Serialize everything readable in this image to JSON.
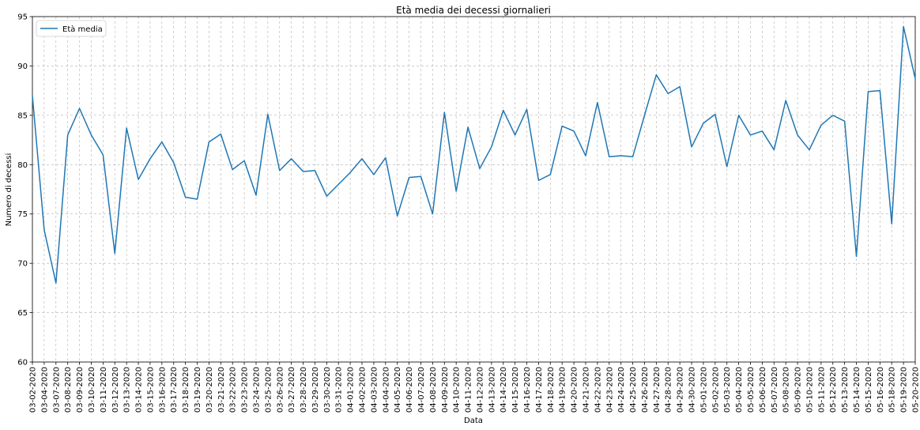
{
  "chart_data": {
    "type": "line",
    "title": "Età media dei decessi giornalieri",
    "xlabel": "Data",
    "ylabel": "Numero di decessi",
    "ylim": [
      60,
      95
    ],
    "yticks": [
      60,
      65,
      70,
      75,
      80,
      85,
      90,
      95
    ],
    "grid": true,
    "legend": "top-left",
    "x": [
      "03-02-2020",
      "03-04-2020",
      "03-07-2020",
      "03-08-2020",
      "03-09-2020",
      "03-10-2020",
      "03-11-2020",
      "03-12-2020",
      "03-13-2020",
      "03-14-2020",
      "03-15-2020",
      "03-16-2020",
      "03-17-2020",
      "03-18-2020",
      "03-19-2020",
      "03-20-2020",
      "03-21-2020",
      "03-22-2020",
      "03-23-2020",
      "03-24-2020",
      "03-25-2020",
      "03-26-2020",
      "03-27-2020",
      "03-28-2020",
      "03-29-2020",
      "03-30-2020",
      "03-31-2020",
      "04-01-2020",
      "04-02-2020",
      "04-03-2020",
      "04-04-2020",
      "04-05-2020",
      "04-06-2020",
      "04-07-2020",
      "04-08-2020",
      "04-09-2020",
      "04-10-2020",
      "04-11-2020",
      "04-12-2020",
      "04-13-2020",
      "04-14-2020",
      "04-15-2020",
      "04-16-2020",
      "04-17-2020",
      "04-18-2020",
      "04-19-2020",
      "04-20-2020",
      "04-21-2020",
      "04-22-2020",
      "04-23-2020",
      "04-24-2020",
      "04-25-2020",
      "04-26-2020",
      "04-27-2020",
      "04-28-2020",
      "04-29-2020",
      "04-30-2020",
      "05-01-2020",
      "05-02-2020",
      "05-03-2020",
      "05-04-2020",
      "05-05-2020",
      "05-06-2020",
      "05-07-2020",
      "05-08-2020",
      "05-09-2020",
      "05-10-2020",
      "05-11-2020",
      "05-12-2020",
      "05-13-2020",
      "05-14-2020",
      "05-15-2020",
      "05-16-2020",
      "05-18-2020",
      "05-19-2020",
      "05-20-2020"
    ],
    "series": [
      {
        "name": "Età media",
        "color": "#1f77b4",
        "values": [
          87.0,
          73.4,
          68.0,
          83.0,
          85.7,
          83.0,
          81.0,
          71.0,
          83.7,
          78.5,
          80.6,
          82.3,
          80.2,
          76.7,
          76.5,
          82.3,
          83.1,
          79.5,
          80.4,
          76.9,
          85.1,
          79.4,
          80.6,
          79.3,
          79.4,
          76.8,
          78.0,
          79.2,
          80.6,
          79.0,
          80.7,
          74.8,
          78.7,
          78.8,
          75.0,
          85.3,
          77.3,
          83.8,
          79.6,
          81.8,
          85.5,
          83.0,
          85.6,
          78.4,
          79.0,
          83.9,
          83.4,
          80.9,
          86.3,
          80.8,
          80.9,
          80.8,
          85.0,
          89.1,
          87.2,
          87.9,
          81.8,
          84.2,
          85.1,
          79.8,
          85.0,
          83.0,
          83.4,
          81.5,
          86.5,
          83.0,
          81.5,
          84.0,
          85.0,
          84.4,
          70.7,
          87.4,
          87.5,
          74.0,
          94.0,
          88.7
        ]
      }
    ]
  }
}
